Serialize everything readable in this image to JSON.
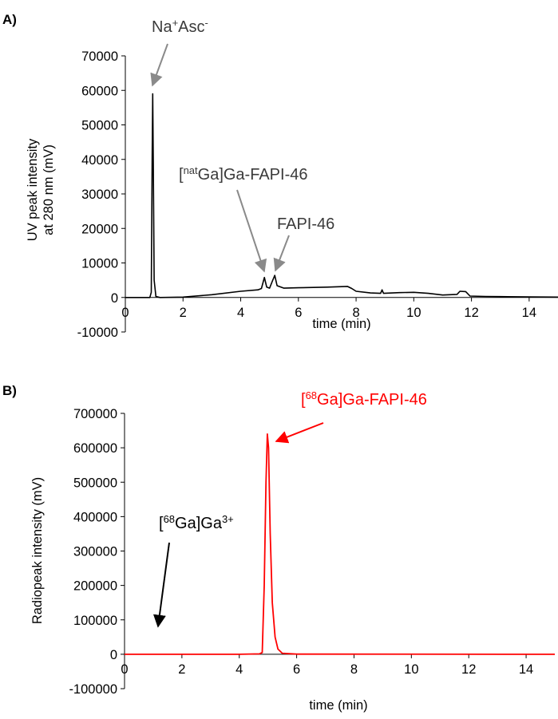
{
  "chart_data": [
    {
      "panel_label": "A)",
      "type": "line",
      "xlabel": "time (min)",
      "ylabel_lines": [
        "UV peak intensity",
        "at 280 nm (mV)"
      ],
      "xlim": [
        0,
        15
      ],
      "ylim": [
        -10000,
        70000
      ],
      "x_ticks": [
        0,
        2,
        4,
        6,
        8,
        10,
        12,
        14
      ],
      "y_ticks": [
        -10000,
        0,
        10000,
        20000,
        30000,
        40000,
        50000,
        60000,
        70000
      ],
      "grid": false,
      "series": [
        {
          "color": "#000000",
          "points": [
            [
              0,
              0
            ],
            [
              0.85,
              0
            ],
            [
              0.9,
              1500
            ],
            [
              0.93,
              40000
            ],
            [
              0.95,
              59000
            ],
            [
              0.97,
              40000
            ],
            [
              1.0,
              5000
            ],
            [
              1.06,
              300
            ],
            [
              1.2,
              0
            ],
            [
              2.0,
              100
            ],
            [
              3.0,
              800
            ],
            [
              4.0,
              1800
            ],
            [
              4.6,
              2200
            ],
            [
              4.72,
              2600
            ],
            [
              4.82,
              5800
            ],
            [
              4.9,
              3000
            ],
            [
              5.0,
              2700
            ],
            [
              5.1,
              4800
            ],
            [
              5.18,
              6400
            ],
            [
              5.26,
              3400
            ],
            [
              5.5,
              2700
            ],
            [
              6.0,
              2800
            ],
            [
              7.0,
              3000
            ],
            [
              7.7,
              3200
            ],
            [
              7.85,
              2600
            ],
            [
              8.0,
              1800
            ],
            [
              8.5,
              1300
            ],
            [
              8.85,
              1200
            ],
            [
              8.9,
              2200
            ],
            [
              8.95,
              1200
            ],
            [
              9.5,
              1400
            ],
            [
              10.0,
              1500
            ],
            [
              10.5,
              1200
            ],
            [
              11.0,
              700
            ],
            [
              11.5,
              900
            ],
            [
              11.6,
              1800
            ],
            [
              11.8,
              1700
            ],
            [
              11.95,
              400
            ],
            [
              12.5,
              300
            ],
            [
              13.0,
              250
            ],
            [
              14.0,
              150
            ],
            [
              15.0,
              100
            ]
          ]
        }
      ],
      "annotations": [
        {
          "base": "Na",
          "sup1": "+",
          "mid": "Asc",
          "sup2": "-",
          "color": "#000000",
          "point_to": [
            0.95,
            59000
          ]
        },
        {
          "pre": "[",
          "sup1": "nat",
          "post": "Ga]Ga-FAPI-46",
          "color": "#000000",
          "point_to": [
            4.82,
            6500
          ]
        },
        {
          "text": "FAPI-46",
          "color": "#000000",
          "point_to": [
            5.18,
            7000
          ]
        }
      ]
    },
    {
      "panel_label": "B)",
      "type": "line",
      "xlabel": "time (min)",
      "ylabel": "Radiopeak intensity (mV)",
      "xlim": [
        0,
        15
      ],
      "ylim": [
        -100000,
        700000
      ],
      "x_ticks": [
        0,
        2,
        4,
        6,
        8,
        10,
        12,
        14
      ],
      "y_ticks": [
        -100000,
        0,
        100000,
        200000,
        300000,
        400000,
        500000,
        600000,
        700000
      ],
      "grid": false,
      "series": [
        {
          "color": "#ff0000",
          "points": [
            [
              0,
              0
            ],
            [
              4.0,
              0
            ],
            [
              4.7,
              1000
            ],
            [
              4.8,
              5000
            ],
            [
              4.87,
              200000
            ],
            [
              4.93,
              500000
            ],
            [
              4.98,
              640000
            ],
            [
              5.02,
              600000
            ],
            [
              5.08,
              350000
            ],
            [
              5.15,
              150000
            ],
            [
              5.25,
              50000
            ],
            [
              5.35,
              15000
            ],
            [
              5.5,
              3000
            ],
            [
              6.0,
              500
            ],
            [
              15.0,
              0
            ]
          ]
        }
      ],
      "annotations": [
        {
          "pre": "[",
          "sup1": "68",
          "post": "Ga]Ga-FAPI-46",
          "color": "#ff0000",
          "point_to": [
            5.05,
            600000
          ]
        },
        {
          "pre": "[",
          "sup1": "68",
          "post": "Ga]Ga",
          "sup2": "3+",
          "color": "#000000",
          "point_to": [
            1.1,
            70000
          ]
        }
      ]
    }
  ]
}
